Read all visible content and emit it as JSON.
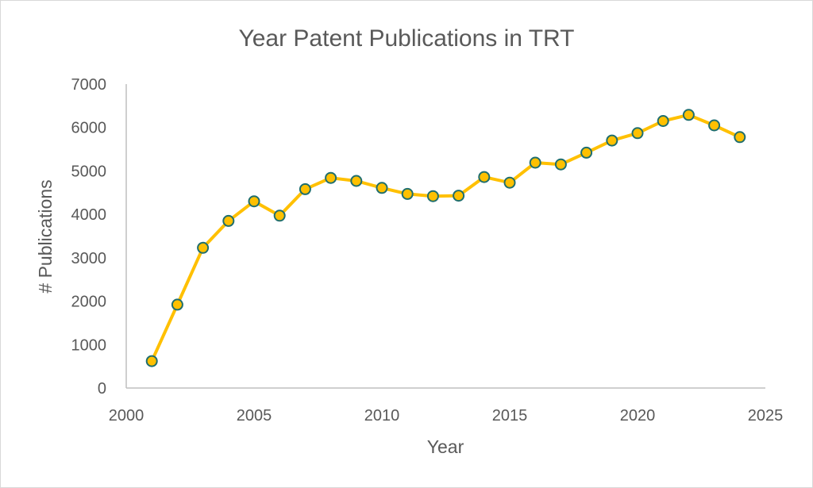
{
  "chart_data": {
    "type": "line",
    "title": "Year Patent Publications in TRT",
    "xlabel": "Year",
    "ylabel": "# Publications",
    "xlim": [
      2000,
      2025
    ],
    "ylim": [
      0,
      7000
    ],
    "x_ticks": [
      2000,
      2005,
      2010,
      2015,
      2020,
      2025
    ],
    "y_ticks": [
      0,
      1000,
      2000,
      3000,
      4000,
      5000,
      6000,
      7000
    ],
    "grid": false,
    "legend": "none",
    "series": [
      {
        "x": [
          2001,
          2002,
          2003,
          2004,
          2005,
          2006,
          2007,
          2008,
          2009,
          2010,
          2011,
          2012,
          2013,
          2014,
          2015,
          2016,
          2017,
          2018,
          2019,
          2020,
          2021,
          2022,
          2023,
          2024
        ],
        "values": [
          620,
          1920,
          3230,
          3850,
          4300,
          3970,
          4580,
          4840,
          4770,
          4610,
          4470,
          4420,
          4430,
          4860,
          4730,
          5190,
          5150,
          5420,
          5700,
          5870,
          6150,
          6290,
          6050,
          5780
        ]
      }
    ],
    "colors": {
      "line": "#FFC000",
      "marker_fill": "#FFC000",
      "marker_edge": "#1F6E6E",
      "axis": "#bfbfbf",
      "text": "#595959"
    }
  }
}
